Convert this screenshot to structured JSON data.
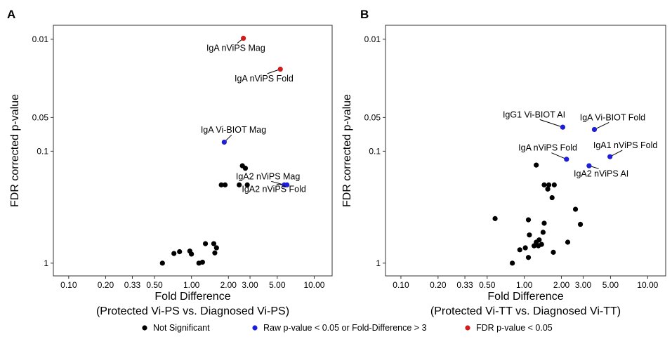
{
  "chart_data": [
    {
      "type": "scatter",
      "panel_label": "A",
      "xlabel": "Fold Difference",
      "xlabel2": "(Protected Vi-PS vs. Diagnosed Vi-PS)",
      "ylabel": "FDR corrected p-value",
      "x_scale": "log",
      "y_scale": "log-reversed",
      "xlim": [
        0.075,
        14
      ],
      "ylim": [
        1.3,
        0.0075
      ],
      "x_ticks": [
        0.1,
        0.2,
        0.33,
        0.5,
        1.0,
        2.0,
        3.0,
        5.0,
        10.0
      ],
      "x_tick_labels": [
        "0.10",
        "0.20",
        "0.33",
        "0.50",
        "1.00",
        "2.00",
        "3.00",
        "5.00",
        "10.00"
      ],
      "y_ticks": [
        0.01,
        0.05,
        0.1,
        1
      ],
      "y_tick_labels": [
        "0.01",
        "0.05",
        "0.1",
        "1"
      ],
      "points": [
        {
          "x": 2.65,
          "y": 0.0098,
          "group": "fdr"
        },
        {
          "x": 5.3,
          "y": 0.0185,
          "group": "fdr"
        },
        {
          "x": 1.85,
          "y": 0.083,
          "group": "raw"
        },
        {
          "x": 5.7,
          "y": 0.2,
          "group": "raw"
        },
        {
          "x": 6.0,
          "y": 0.2,
          "group": "raw"
        },
        {
          "x": 2.6,
          "y": 0.135,
          "group": "ns"
        },
        {
          "x": 2.75,
          "y": 0.142,
          "group": "ns"
        },
        {
          "x": 1.75,
          "y": 0.2,
          "group": "ns"
        },
        {
          "x": 1.88,
          "y": 0.2,
          "group": "ns"
        },
        {
          "x": 2.45,
          "y": 0.2,
          "group": "ns"
        },
        {
          "x": 2.85,
          "y": 0.2,
          "group": "ns"
        },
        {
          "x": 0.58,
          "y": 1.0,
          "group": "ns"
        },
        {
          "x": 0.72,
          "y": 0.82,
          "group": "ns"
        },
        {
          "x": 0.8,
          "y": 0.79,
          "group": "ns"
        },
        {
          "x": 0.97,
          "y": 0.78,
          "group": "ns"
        },
        {
          "x": 1.0,
          "y": 0.83,
          "group": "ns"
        },
        {
          "x": 1.15,
          "y": 1.0,
          "group": "ns"
        },
        {
          "x": 1.23,
          "y": 0.98,
          "group": "ns"
        },
        {
          "x": 1.3,
          "y": 0.67,
          "group": "ns"
        },
        {
          "x": 1.52,
          "y": 0.67,
          "group": "ns"
        },
        {
          "x": 1.6,
          "y": 0.73,
          "group": "ns"
        },
        {
          "x": 1.55,
          "y": 0.81,
          "group": "ns"
        }
      ],
      "annotations": [
        {
          "text": "IgA nViPS Mag",
          "px": 2.65,
          "py": 0.0098,
          "tx": 2.3,
          "ty": 0.0127
        },
        {
          "text": "IgA nViPS Fold",
          "px": 5.3,
          "py": 0.0185,
          "tx": 3.9,
          "ty": 0.0238
        },
        {
          "text": "IgA Vi-BIOT Mag",
          "px": 1.85,
          "py": 0.083,
          "tx": 2.2,
          "ty": 0.0685
        },
        {
          "text": "IgA2 nViPS Mag",
          "px": 5.7,
          "py": 0.2,
          "tx": 4.2,
          "ty": 0.178
        },
        {
          "text": "IgA2 nViPS Fold",
          "px": 6.0,
          "py": 0.2,
          "tx": 4.7,
          "ty": 0.232
        }
      ]
    },
    {
      "type": "scatter",
      "panel_label": "B",
      "xlabel": "Fold Difference",
      "xlabel2": "(Protected Vi-TT vs. Diagnosed Vi-TT)",
      "ylabel": "FDR corrected p-value",
      "x_scale": "log",
      "y_scale": "log-reversed",
      "xlim": [
        0.075,
        14
      ],
      "ylim": [
        1.3,
        0.0075
      ],
      "x_ticks": [
        0.1,
        0.2,
        0.33,
        0.5,
        1.0,
        2.0,
        3.0,
        5.0,
        10.0
      ],
      "x_tick_labels": [
        "0.10",
        "0.20",
        "0.33",
        "0.50",
        "1.00",
        "2.00",
        "3.00",
        "5.00",
        "10.00"
      ],
      "y_ticks": [
        0.01,
        0.05,
        0.1,
        1
      ],
      "y_tick_labels": [
        "0.01",
        "0.05",
        "0.1",
        "1"
      ],
      "points": [
        {
          "x": 2.05,
          "y": 0.061,
          "group": "raw"
        },
        {
          "x": 3.7,
          "y": 0.064,
          "group": "raw"
        },
        {
          "x": 2.2,
          "y": 0.118,
          "group": "raw"
        },
        {
          "x": 3.35,
          "y": 0.135,
          "group": "raw"
        },
        {
          "x": 4.95,
          "y": 0.112,
          "group": "raw"
        },
        {
          "x": 1.25,
          "y": 0.133,
          "group": "ns"
        },
        {
          "x": 1.45,
          "y": 0.2,
          "group": "ns"
        },
        {
          "x": 1.58,
          "y": 0.2,
          "group": "ns"
        },
        {
          "x": 1.75,
          "y": 0.2,
          "group": "ns"
        },
        {
          "x": 1.55,
          "y": 0.218,
          "group": "ns"
        },
        {
          "x": 1.68,
          "y": 0.26,
          "group": "ns"
        },
        {
          "x": 2.6,
          "y": 0.33,
          "group": "ns"
        },
        {
          "x": 0.58,
          "y": 0.4,
          "group": "ns"
        },
        {
          "x": 1.08,
          "y": 0.41,
          "group": "ns"
        },
        {
          "x": 1.45,
          "y": 0.44,
          "group": "ns"
        },
        {
          "x": 2.85,
          "y": 0.45,
          "group": "ns"
        },
        {
          "x": 1.42,
          "y": 0.53,
          "group": "ns"
        },
        {
          "x": 1.1,
          "y": 0.56,
          "group": "ns"
        },
        {
          "x": 1.32,
          "y": 0.62,
          "group": "ns"
        },
        {
          "x": 1.25,
          "y": 0.65,
          "group": "ns"
        },
        {
          "x": 1.3,
          "y": 0.7,
          "group": "ns"
        },
        {
          "x": 1.38,
          "y": 0.68,
          "group": "ns"
        },
        {
          "x": 2.25,
          "y": 0.65,
          "group": "ns"
        },
        {
          "x": 0.92,
          "y": 0.76,
          "group": "ns"
        },
        {
          "x": 1.02,
          "y": 0.73,
          "group": "ns"
        },
        {
          "x": 1.2,
          "y": 0.7,
          "group": "ns"
        },
        {
          "x": 1.72,
          "y": 0.8,
          "group": "ns"
        },
        {
          "x": 1.08,
          "y": 0.89,
          "group": "ns"
        },
        {
          "x": 0.8,
          "y": 1.0,
          "group": "ns"
        }
      ],
      "annotations": [
        {
          "text": "IgG1 Vi-BIOT AI",
          "px": 2.05,
          "py": 0.061,
          "tx": 1.2,
          "ty": 0.05
        },
        {
          "text": "IgA Vi-BIOT Fold",
          "px": 3.7,
          "py": 0.064,
          "tx": 5.2,
          "ty": 0.053
        },
        {
          "text": "IgA nViPS Fold",
          "px": 2.2,
          "py": 0.118,
          "tx": 1.55,
          "ty": 0.099
        },
        {
          "text": "IgA1 nViPS Fold",
          "px": 4.95,
          "py": 0.112,
          "tx": 6.6,
          "ty": 0.094
        },
        {
          "text": "IgA2 nViPS AI",
          "px": 3.35,
          "py": 0.135,
          "tx": 4.2,
          "ty": 0.168
        }
      ]
    }
  ],
  "legend": {
    "items": [
      {
        "label": "Not Significant",
        "color": "#000000"
      },
      {
        "label": "Raw p-value < 0.05 or Fold-Difference > 3",
        "color": "#1f1fd6"
      },
      {
        "label": "FDR p-value < 0.05",
        "color": "#d01c1c"
      }
    ]
  },
  "colors": {
    "ns": "#000000",
    "raw": "#1f1fd6",
    "fdr": "#d01c1c"
  }
}
